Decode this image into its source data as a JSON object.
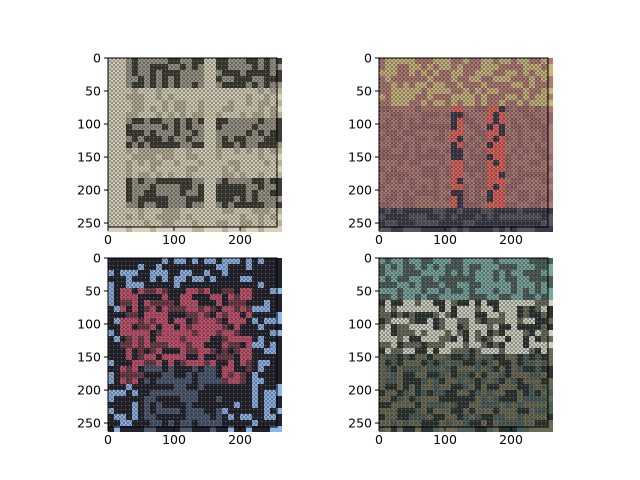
{
  "chart_data": [
    {
      "type": "image",
      "panel": "top-left",
      "xlim": [
        0,
        256
      ],
      "ylim": [
        256,
        0
      ],
      "xticks": [
        "0",
        "100",
        "200"
      ],
      "yticks": [
        "0",
        "50",
        "100",
        "150",
        "200",
        "250"
      ],
      "content": "textured building facade with balconies",
      "palette": {
        "base": "#9a9484",
        "light": "#d8d2bc",
        "dark": "#3c3c34",
        "accent": "#b8b098"
      }
    },
    {
      "type": "image",
      "panel": "top-right",
      "xlim": [
        0,
        256
      ],
      "ylim": [
        256,
        0
      ],
      "xticks": [
        "0",
        "100",
        "200"
      ],
      "yticks": [
        "0",
        "50",
        "100",
        "150",
        "200",
        "250"
      ],
      "content": "reddish wall with olive top band and dark bottom",
      "palette": {
        "base": "#b07a74",
        "light": "#c9b77e",
        "dark": "#3b3a4a",
        "accent": "#e0625a"
      }
    },
    {
      "type": "image",
      "panel": "bottom-left",
      "xlim": [
        0,
        256
      ],
      "ylim": [
        256,
        0
      ],
      "xticks": [
        "0",
        "100",
        "200"
      ],
      "yticks": [
        "0",
        "50",
        "100",
        "150",
        "200",
        "250"
      ],
      "content": "red building with windows and blue highlights",
      "palette": {
        "base": "#6a3a46",
        "light": "#c2506a",
        "dark": "#22222c",
        "accent": "#8fb4e8"
      }
    },
    {
      "type": "image",
      "panel": "bottom-right",
      "xlim": [
        0,
        256
      ],
      "ylim": [
        256,
        0
      ],
      "xticks": [
        "0",
        "100",
        "200"
      ],
      "yticks": [
        "0",
        "50",
        "100",
        "150",
        "200",
        "250"
      ],
      "content": "teal textured ground with light speckled band",
      "palette": {
        "base": "#4c5e58",
        "light": "#cfd2c0",
        "dark": "#2c3432",
        "accent": "#7aa6a0"
      }
    }
  ]
}
